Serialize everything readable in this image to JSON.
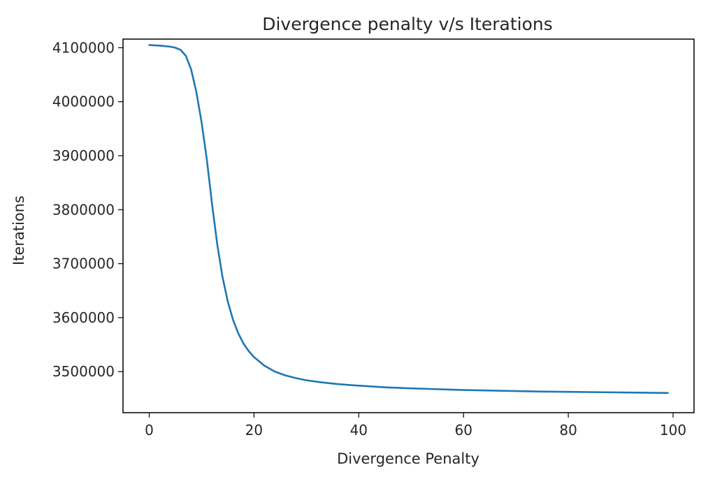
{
  "chart_data": {
    "type": "line",
    "title": "Divergence penalty v/s Iterations",
    "xlabel": "Divergence Penalty",
    "ylabel": "Iterations",
    "xlim": [
      -5,
      104
    ],
    "ylim": [
      3424000,
      4116000
    ],
    "x_ticks": [
      0,
      20,
      40,
      60,
      80,
      100
    ],
    "y_ticks": [
      3500000,
      3600000,
      3700000,
      3800000,
      3900000,
      4000000,
      4100000
    ],
    "grid": false,
    "series": [
      {
        "color": "#1f77b4",
        "x": [
          0,
          1,
          2,
          3,
          4,
          5,
          6,
          7,
          8,
          9,
          10,
          11,
          12,
          13,
          14,
          15,
          16,
          17,
          18,
          19,
          20,
          22,
          24,
          26,
          28,
          30,
          33,
          36,
          40,
          45,
          50,
          55,
          60,
          65,
          70,
          75,
          80,
          85,
          90,
          95,
          99
        ],
        "y": [
          4105000,
          4104500,
          4104000,
          4103000,
          4102000,
          4100000,
          4096000,
          4085000,
          4060000,
          4018000,
          3962000,
          3893000,
          3810000,
          3735000,
          3675000,
          3630000,
          3596000,
          3571000,
          3552000,
          3538000,
          3527000,
          3511000,
          3500000,
          3493000,
          3488000,
          3484000,
          3480000,
          3477000,
          3474000,
          3471000,
          3469000,
          3467500,
          3466000,
          3465000,
          3464000,
          3463000,
          3462500,
          3462000,
          3461500,
          3461000,
          3460500
        ]
      }
    ]
  }
}
